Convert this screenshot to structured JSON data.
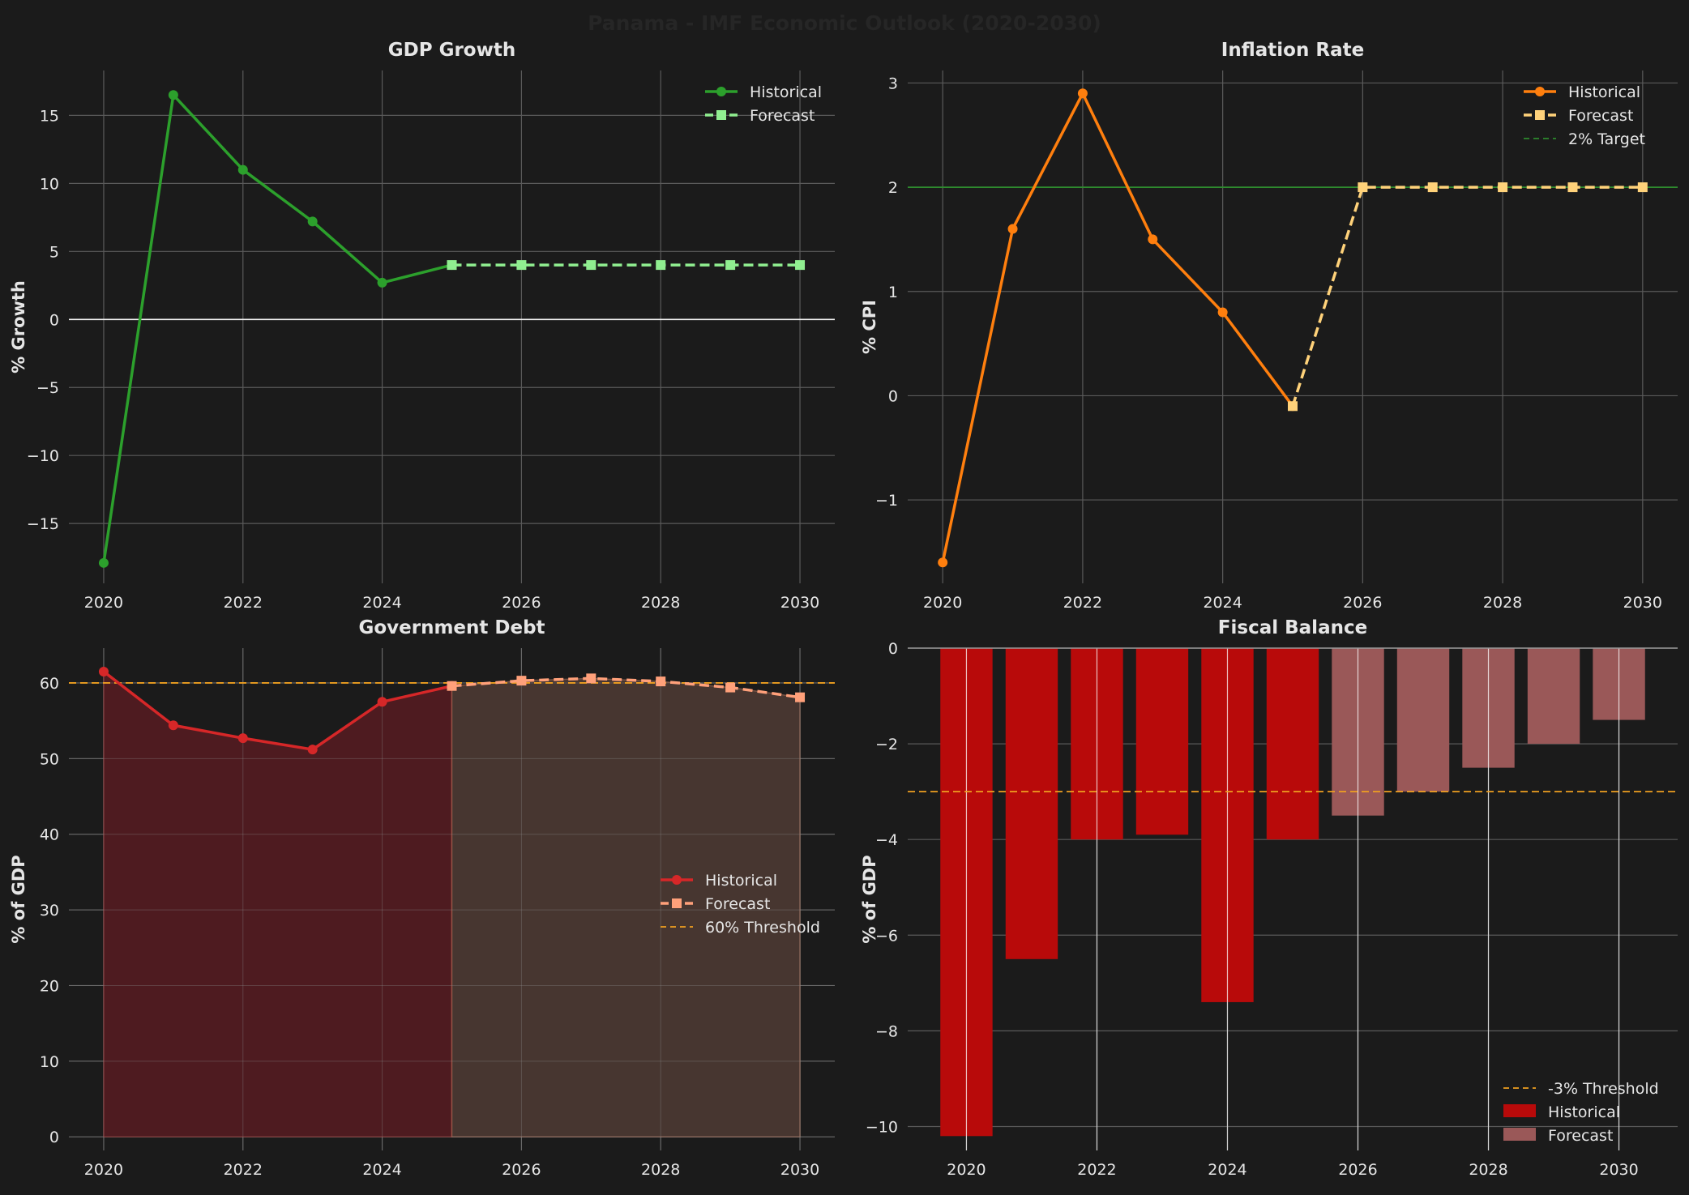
{
  "figure": {
    "suptitle": "Panama - IMF Economic Outlook (2020-2030)",
    "colors": {
      "background": "#1b1b1b",
      "grid": "#5a5a5a",
      "text": "#e6e6e6",
      "suptitle": "#262626",
      "threshold": "#f0a020"
    }
  },
  "chart_data": [
    {
      "type": "line",
      "title": "GDP Growth",
      "xlabel": "",
      "ylabel": "% Growth",
      "xlim": [
        2019.5,
        2030.5
      ],
      "ylim": [
        -19.4,
        18.3
      ],
      "xticks": [
        2020,
        2022,
        2024,
        2026,
        2028,
        2030
      ],
      "yticks": [
        -15,
        -10,
        -5,
        0,
        5,
        10,
        15
      ],
      "tick_labels_y": [
        "−15",
        "−10",
        "−5",
        "0",
        "5",
        "10",
        "15"
      ],
      "grid": true,
      "legend": {
        "placement": "top-right",
        "entries": [
          "Historical",
          "Forecast"
        ]
      },
      "zero_line": true,
      "series": [
        {
          "name": "Historical",
          "color": "#2ca02c",
          "style": "solid",
          "marker": "circle",
          "x": [
            2020,
            2021,
            2022,
            2023,
            2024,
            2025
          ],
          "values": [
            -17.9,
            16.5,
            11.0,
            7.2,
            2.7,
            4.0
          ]
        },
        {
          "name": "Forecast",
          "color": "#90ee90",
          "style": "dashed",
          "marker": "square",
          "x": [
            2025,
            2026,
            2027,
            2028,
            2029,
            2030
          ],
          "values": [
            4.0,
            4.0,
            4.0,
            4.0,
            4.0,
            4.0
          ]
        }
      ]
    },
    {
      "type": "line",
      "title": "Inflation Rate",
      "xlabel": "",
      "ylabel": "% CPI",
      "xlim": [
        2019.5,
        2030.5
      ],
      "ylim": [
        -1.8,
        3.12
      ],
      "xticks": [
        2020,
        2022,
        2024,
        2026,
        2028,
        2030
      ],
      "yticks": [
        -1,
        0,
        1,
        2,
        3
      ],
      "tick_labels_y": [
        "−1",
        "0",
        "1",
        "2",
        "3"
      ],
      "grid": true,
      "legend": {
        "placement": "top-right",
        "entries": [
          "Historical",
          "Forecast",
          "2% Target"
        ]
      },
      "reference_line": {
        "name": "2% Target",
        "value": 2,
        "color": "#2e8b2e"
      },
      "series": [
        {
          "name": "Historical",
          "color": "#ff7f0e",
          "style": "solid",
          "marker": "circle",
          "x": [
            2020,
            2021,
            2022,
            2023,
            2024,
            2025
          ],
          "values": [
            -1.6,
            1.6,
            2.9,
            1.5,
            0.8,
            -0.1
          ]
        },
        {
          "name": "Forecast",
          "color": "#ffd27a",
          "style": "dashed",
          "marker": "square",
          "x": [
            2025,
            2026,
            2027,
            2028,
            2029,
            2030
          ],
          "values": [
            -0.1,
            2.0,
            2.0,
            2.0,
            2.0,
            2.0
          ]
        }
      ]
    },
    {
      "type": "area",
      "title": "Government Debt",
      "xlabel": "",
      "ylabel": "% of GDP",
      "xlim": [
        2019.5,
        2030.5
      ],
      "ylim": [
        -1.8,
        64.6
      ],
      "xticks": [
        2020,
        2022,
        2024,
        2026,
        2028,
        2030
      ],
      "yticks": [
        0,
        10,
        20,
        30,
        40,
        50,
        60
      ],
      "tick_labels_y": [
        "0",
        "10",
        "20",
        "30",
        "40",
        "50",
        "60"
      ],
      "grid": true,
      "legend": {
        "placement": "center-right",
        "entries": [
          "Historical",
          "Forecast",
          "60% Threshold"
        ]
      },
      "reference_line": {
        "name": "60% Threshold",
        "value": 60,
        "color": "#f0a020"
      },
      "series": [
        {
          "name": "Historical",
          "color": "#d62728",
          "fill": "#4e1b20",
          "style": "solid",
          "marker": "circle",
          "x": [
            2020,
            2021,
            2022,
            2023,
            2024,
            2025
          ],
          "values": [
            61.5,
            54.4,
            52.7,
            51.2,
            57.5,
            59.6
          ]
        },
        {
          "name": "Forecast",
          "color": "#ffa07a",
          "fill": "#473630",
          "style": "dashed",
          "marker": "square",
          "x": [
            2025,
            2026,
            2027,
            2028,
            2029,
            2030
          ],
          "values": [
            59.6,
            60.3,
            60.6,
            60.2,
            59.4,
            58.1
          ]
        }
      ]
    },
    {
      "type": "bar",
      "title": "Fiscal Balance",
      "xlabel": "",
      "ylabel": "% of GDP",
      "xlim": [
        2019.1,
        2030.9
      ],
      "ylim": [
        -10.5,
        0
      ],
      "xticks": [
        2020,
        2022,
        2024,
        2026,
        2028,
        2030
      ],
      "yticks": [
        -10,
        -8,
        -6,
        -4,
        -2,
        0
      ],
      "tick_labels_y": [
        "−10",
        "−8",
        "−6",
        "−4",
        "−2",
        "0"
      ],
      "grid": true,
      "legend": {
        "placement": "bottom-right",
        "entries": [
          "-3% Threshold",
          "Historical",
          "Forecast"
        ]
      },
      "reference_line": {
        "name": "-3% Threshold",
        "value": -3,
        "color": "#f0a020"
      },
      "categories": [
        2020,
        2021,
        2022,
        2023,
        2024,
        2025,
        2026,
        2027,
        2028,
        2029,
        2030
      ],
      "series": [
        {
          "name": "Historical",
          "color": "#b80a0a",
          "x": [
            2020,
            2021,
            2022,
            2023,
            2024,
            2025
          ],
          "values": [
            -10.2,
            -6.5,
            -4.0,
            -3.9,
            -7.4,
            -4.0
          ]
        },
        {
          "name": "Forecast",
          "color": "#9a5858",
          "x": [
            2026,
            2027,
            2028,
            2029,
            2030
          ],
          "values": [
            -3.5,
            -3.0,
            -2.5,
            -2.0,
            -1.5
          ]
        }
      ]
    }
  ]
}
